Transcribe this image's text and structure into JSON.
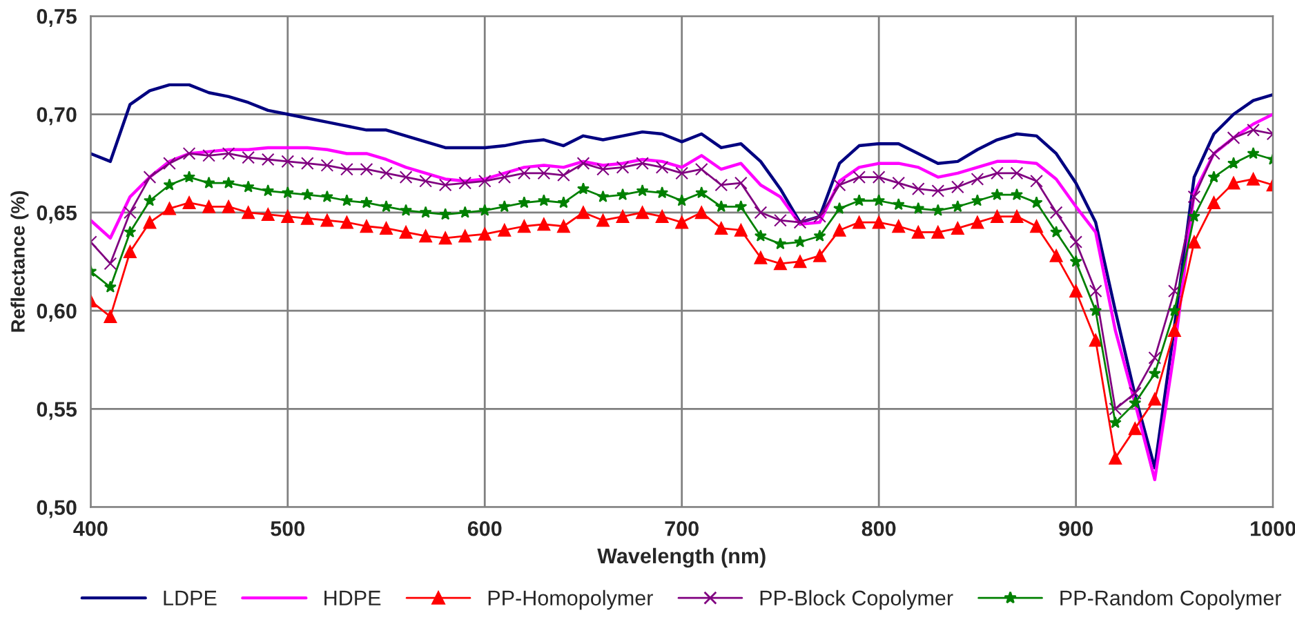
{
  "chart_data": {
    "type": "line",
    "xlabel": "Wavelength (nm)",
    "ylabel": "Reflectance (%)",
    "x": [
      400,
      410,
      420,
      430,
      440,
      450,
      460,
      470,
      480,
      490,
      500,
      510,
      520,
      530,
      540,
      550,
      560,
      570,
      580,
      590,
      600,
      610,
      620,
      630,
      640,
      650,
      660,
      670,
      680,
      690,
      700,
      710,
      720,
      730,
      740,
      750,
      760,
      770,
      780,
      790,
      800,
      810,
      820,
      830,
      840,
      850,
      860,
      870,
      880,
      890,
      900,
      910,
      920,
      930,
      940,
      950,
      960,
      970,
      980,
      990,
      1000
    ],
    "xlim": [
      400,
      1000
    ],
    "xticks": [
      400,
      500,
      600,
      700,
      800,
      900,
      1000
    ],
    "ylim": [
      0.5,
      0.75
    ],
    "yticks": [
      {
        "value": 0.5,
        "label": "0,50"
      },
      {
        "value": 0.55,
        "label": "0,55"
      },
      {
        "value": 0.6,
        "label": "0,60"
      },
      {
        "value": 0.65,
        "label": "0,65"
      },
      {
        "value": 0.7,
        "label": "0,70"
      },
      {
        "value": 0.75,
        "label": "0,75"
      }
    ],
    "grid": true,
    "legend": "bottom",
    "series": [
      {
        "name": "LDPE",
        "color": "#000080",
        "marker": "none",
        "values": [
          0.68,
          0.676,
          0.705,
          0.712,
          0.715,
          0.715,
          0.711,
          0.709,
          0.706,
          0.702,
          0.7,
          0.698,
          0.696,
          0.694,
          0.692,
          0.692,
          0.689,
          0.686,
          0.683,
          0.683,
          0.683,
          0.684,
          0.686,
          0.687,
          0.684,
          0.689,
          0.687,
          0.689,
          0.691,
          0.69,
          0.686,
          0.69,
          0.683,
          0.685,
          0.676,
          0.662,
          0.645,
          0.648,
          0.675,
          0.684,
          0.685,
          0.685,
          0.68,
          0.675,
          0.676,
          0.682,
          0.687,
          0.69,
          0.689,
          0.68,
          0.665,
          0.645,
          0.6,
          0.557,
          0.52,
          0.592,
          0.668,
          0.69,
          0.7,
          0.707,
          0.71
        ]
      },
      {
        "name": "HDPE",
        "color": "#ff00ff",
        "marker": "none",
        "values": [
          0.646,
          0.637,
          0.658,
          0.668,
          0.676,
          0.68,
          0.681,
          0.682,
          0.682,
          0.683,
          0.683,
          0.683,
          0.682,
          0.68,
          0.68,
          0.677,
          0.673,
          0.67,
          0.667,
          0.666,
          0.667,
          0.67,
          0.673,
          0.674,
          0.673,
          0.676,
          0.674,
          0.675,
          0.677,
          0.676,
          0.673,
          0.679,
          0.672,
          0.675,
          0.664,
          0.658,
          0.644,
          0.645,
          0.666,
          0.673,
          0.675,
          0.675,
          0.673,
          0.668,
          0.67,
          0.673,
          0.676,
          0.676,
          0.675,
          0.667,
          0.653,
          0.64,
          0.59,
          0.553,
          0.514,
          0.58,
          0.66,
          0.68,
          0.688,
          0.695,
          0.7
        ]
      },
      {
        "name": "PP-Homopolymer",
        "color": "#ff0000",
        "marker": "triangle",
        "values": [
          0.605,
          0.597,
          0.63,
          0.645,
          0.652,
          0.655,
          0.653,
          0.653,
          0.65,
          0.649,
          0.648,
          0.647,
          0.646,
          0.645,
          0.643,
          0.642,
          0.64,
          0.638,
          0.637,
          0.638,
          0.639,
          0.641,
          0.643,
          0.644,
          0.643,
          0.65,
          0.646,
          0.648,
          0.65,
          0.648,
          0.645,
          0.65,
          0.642,
          0.641,
          0.627,
          0.624,
          0.625,
          0.628,
          0.641,
          0.645,
          0.645,
          0.643,
          0.64,
          0.64,
          0.642,
          0.645,
          0.648,
          0.648,
          0.643,
          0.628,
          0.61,
          0.585,
          0.525,
          0.54,
          0.555,
          0.59,
          0.635,
          0.655,
          0.665,
          0.667,
          0.664
        ]
      },
      {
        "name": "PP-Block Copolymer",
        "color": "#800080",
        "marker": "cross",
        "values": [
          0.635,
          0.624,
          0.65,
          0.668,
          0.675,
          0.68,
          0.679,
          0.68,
          0.678,
          0.677,
          0.676,
          0.675,
          0.674,
          0.672,
          0.672,
          0.67,
          0.668,
          0.666,
          0.664,
          0.665,
          0.666,
          0.668,
          0.67,
          0.67,
          0.669,
          0.675,
          0.672,
          0.673,
          0.675,
          0.673,
          0.67,
          0.672,
          0.664,
          0.665,
          0.65,
          0.646,
          0.645,
          0.648,
          0.664,
          0.668,
          0.668,
          0.665,
          0.662,
          0.661,
          0.663,
          0.667,
          0.67,
          0.67,
          0.666,
          0.65,
          0.635,
          0.61,
          0.55,
          0.558,
          0.576,
          0.61,
          0.658,
          0.68,
          0.688,
          0.692,
          0.69
        ]
      },
      {
        "name": "PP-Random Copolymer",
        "color": "#008000",
        "marker": "star",
        "values": [
          0.62,
          0.612,
          0.64,
          0.656,
          0.664,
          0.668,
          0.665,
          0.665,
          0.663,
          0.661,
          0.66,
          0.659,
          0.658,
          0.656,
          0.655,
          0.653,
          0.651,
          0.65,
          0.649,
          0.65,
          0.651,
          0.653,
          0.655,
          0.656,
          0.655,
          0.662,
          0.658,
          0.659,
          0.661,
          0.66,
          0.656,
          0.66,
          0.653,
          0.653,
          0.638,
          0.634,
          0.635,
          0.638,
          0.652,
          0.656,
          0.656,
          0.654,
          0.652,
          0.651,
          0.653,
          0.656,
          0.659,
          0.659,
          0.655,
          0.64,
          0.625,
          0.6,
          0.543,
          0.553,
          0.568,
          0.6,
          0.648,
          0.668,
          0.675,
          0.68,
          0.677
        ]
      }
    ]
  }
}
